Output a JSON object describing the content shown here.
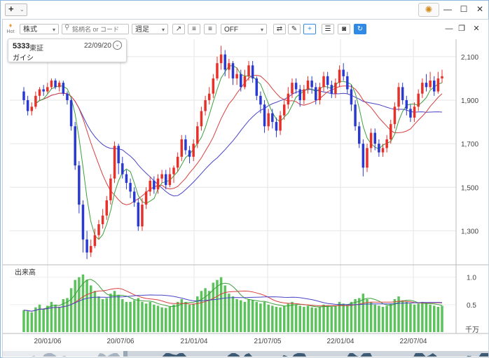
{
  "titlebar": {
    "add_label": "+",
    "add_caret": "⌄",
    "gear_icon": "gear-icon",
    "minimize": "—",
    "maximize": "☐",
    "close": "✕"
  },
  "toolbar": {
    "hot_label": "Hot",
    "market_select": "株式",
    "search_placeholder": "銘柄名 or コード",
    "period_select": "週足",
    "indicator_select": "OFF",
    "panel_minimize": "—",
    "panel_restore": "❐",
    "panel_close": "✕"
  },
  "info_card": {
    "code": "5333",
    "exchange": "東証",
    "date": "22/09/20",
    "name": "ガイシ"
  },
  "price_axis": {
    "labels": [
      "2,100",
      "1,900",
      "1,700",
      "1,500",
      "1,300"
    ]
  },
  "volume_axis": {
    "title": "出来高",
    "labels": [
      "1.0",
      "0.5"
    ],
    "unit": "千万"
  },
  "date_axis": {
    "labels": [
      "20/01/06",
      "20/07/06",
      "21/01/04",
      "21/07/05",
      "22/01/04",
      "22/07/04"
    ]
  },
  "colors": {
    "up": "#e8302a",
    "down": "#2a3ad0",
    "ma_short": "#3aa03a",
    "ma_mid": "#d84040",
    "ma_long": "#4a44c8",
    "volume": "#5cc35c"
  },
  "chart_data": {
    "type": "candlestick",
    "price_range": [
      1150,
      2180
    ],
    "volume_range": [
      0,
      1.2
    ],
    "volume_unit": "千万",
    "candles": [
      [
        1940,
        1900,
        1960,
        1880,
        0.4
      ],
      [
        1900,
        1850,
        1920,
        1830,
        0.38
      ],
      [
        1850,
        1870,
        1890,
        1830,
        0.36
      ],
      [
        1870,
        1920,
        1940,
        1860,
        0.45
      ],
      [
        1920,
        1950,
        1960,
        1900,
        0.5
      ],
      [
        1950,
        1940,
        1970,
        1920,
        0.42
      ],
      [
        1940,
        1960,
        1980,
        1930,
        0.48
      ],
      [
        1960,
        1990,
        2000,
        1950,
        0.55
      ],
      [
        1990,
        1960,
        2000,
        1950,
        0.5
      ],
      [
        1960,
        1980,
        1990,
        1940,
        0.46
      ],
      [
        1980,
        1930,
        1990,
        1920,
        0.6
      ],
      [
        1930,
        1900,
        1940,
        1880,
        0.62
      ],
      [
        1900,
        1780,
        1910,
        1760,
        0.8
      ],
      [
        1780,
        1600,
        1800,
        1580,
        0.95
      ],
      [
        1600,
        1420,
        1620,
        1380,
        1.0
      ],
      [
        1420,
        1260,
        1440,
        1200,
        1.05
      ],
      [
        1260,
        1200,
        1300,
        1170,
        0.95
      ],
      [
        1200,
        1230,
        1260,
        1180,
        0.85
      ],
      [
        1230,
        1280,
        1310,
        1220,
        0.75
      ],
      [
        1280,
        1330,
        1350,
        1260,
        0.65
      ],
      [
        1330,
        1370,
        1400,
        1310,
        0.6
      ],
      [
        1370,
        1440,
        1460,
        1350,
        0.62
      ],
      [
        1440,
        1540,
        1560,
        1420,
        0.7
      ],
      [
        1540,
        1690,
        1710,
        1520,
        0.75
      ],
      [
        1690,
        1610,
        1700,
        1560,
        0.68
      ],
      [
        1610,
        1560,
        1640,
        1540,
        0.6
      ],
      [
        1560,
        1520,
        1580,
        1490,
        0.55
      ],
      [
        1520,
        1480,
        1540,
        1450,
        0.55
      ],
      [
        1480,
        1430,
        1500,
        1410,
        0.58
      ],
      [
        1430,
        1320,
        1450,
        1300,
        0.62
      ],
      [
        1320,
        1420,
        1450,
        1300,
        0.55
      ],
      [
        1420,
        1480,
        1500,
        1400,
        0.52
      ],
      [
        1480,
        1530,
        1550,
        1460,
        0.55
      ],
      [
        1530,
        1490,
        1550,
        1470,
        0.5
      ],
      [
        1490,
        1540,
        1560,
        1470,
        0.48
      ],
      [
        1540,
        1560,
        1580,
        1520,
        0.45
      ],
      [
        1560,
        1510,
        1580,
        1490,
        0.44
      ],
      [
        1510,
        1560,
        1590,
        1500,
        0.46
      ],
      [
        1560,
        1590,
        1600,
        1520,
        0.5
      ],
      [
        1590,
        1640,
        1660,
        1570,
        0.55
      ],
      [
        1640,
        1720,
        1740,
        1620,
        0.6
      ],
      [
        1720,
        1670,
        1740,
        1650,
        0.55
      ],
      [
        1670,
        1640,
        1690,
        1610,
        0.5
      ],
      [
        1640,
        1700,
        1720,
        1620,
        0.52
      ],
      [
        1700,
        1780,
        1800,
        1680,
        0.65
      ],
      [
        1780,
        1850,
        1870,
        1760,
        0.75
      ],
      [
        1850,
        1900,
        1920,
        1830,
        0.8
      ],
      [
        1900,
        1930,
        1960,
        1880,
        0.75
      ],
      [
        1930,
        2000,
        2020,
        1910,
        0.9
      ],
      [
        2000,
        2070,
        2100,
        1990,
        0.95
      ],
      [
        2070,
        2110,
        2150,
        2040,
        1.0
      ],
      [
        2110,
        2040,
        2130,
        2010,
        0.85
      ],
      [
        2040,
        2070,
        2090,
        2000,
        0.7
      ],
      [
        2070,
        2000,
        2080,
        1970,
        0.65
      ],
      [
        2000,
        2020,
        2050,
        1970,
        0.6
      ],
      [
        2020,
        1960,
        2040,
        1940,
        0.58
      ],
      [
        1960,
        2010,
        2040,
        1950,
        0.55
      ],
      [
        2010,
        2060,
        2080,
        1990,
        0.6
      ],
      [
        2060,
        2000,
        2080,
        1980,
        0.58
      ],
      [
        2000,
        1920,
        2010,
        1900,
        0.55
      ],
      [
        1920,
        1880,
        1940,
        1840,
        0.52
      ],
      [
        1880,
        1780,
        1900,
        1750,
        0.55
      ],
      [
        1780,
        1840,
        1860,
        1760,
        0.5
      ],
      [
        1840,
        1800,
        1860,
        1770,
        0.48
      ],
      [
        1800,
        1760,
        1820,
        1730,
        0.46
      ],
      [
        1760,
        1830,
        1850,
        1740,
        0.45
      ],
      [
        1830,
        1880,
        1900,
        1810,
        0.48
      ],
      [
        1880,
        1930,
        1960,
        1860,
        0.52
      ],
      [
        1930,
        1980,
        2000,
        1910,
        0.55
      ],
      [
        1980,
        1950,
        2000,
        1930,
        0.5
      ],
      [
        1950,
        1900,
        1970,
        1870,
        0.48
      ],
      [
        1900,
        1950,
        1970,
        1880,
        0.46
      ],
      [
        1950,
        1990,
        2010,
        1930,
        0.48
      ],
      [
        1990,
        1960,
        2010,
        1930,
        0.45
      ],
      [
        1960,
        1900,
        1980,
        1880,
        0.44
      ],
      [
        1900,
        1960,
        1980,
        1880,
        0.46
      ],
      [
        1960,
        2010,
        2030,
        1940,
        0.5
      ],
      [
        2010,
        1970,
        2030,
        1950,
        0.48
      ],
      [
        1970,
        1930,
        1990,
        1910,
        0.46
      ],
      [
        1930,
        1980,
        2000,
        1910,
        0.48
      ],
      [
        1980,
        2040,
        2060,
        1960,
        0.55
      ],
      [
        2040,
        2010,
        2070,
        1990,
        0.52
      ],
      [
        2010,
        1950,
        2030,
        1930,
        0.5
      ],
      [
        1950,
        1880,
        1970,
        1850,
        0.55
      ],
      [
        1880,
        1780,
        1900,
        1760,
        0.6
      ],
      [
        1780,
        1700,
        1800,
        1680,
        0.62
      ],
      [
        1700,
        1590,
        1720,
        1550,
        0.7
      ],
      [
        1590,
        1680,
        1700,
        1570,
        0.6
      ],
      [
        1680,
        1750,
        1770,
        1660,
        0.55
      ],
      [
        1750,
        1700,
        1770,
        1670,
        0.5
      ],
      [
        1700,
        1660,
        1720,
        1640,
        0.48
      ],
      [
        1660,
        1680,
        1700,
        1640,
        0.46
      ],
      [
        1680,
        1720,
        1740,
        1660,
        0.48
      ],
      [
        1720,
        1790,
        1810,
        1700,
        0.52
      ],
      [
        1790,
        1870,
        1890,
        1770,
        0.6
      ],
      [
        1870,
        1960,
        1980,
        1850,
        0.65
      ],
      [
        1960,
        1900,
        1980,
        1880,
        0.58
      ],
      [
        1900,
        1860,
        1920,
        1830,
        0.55
      ],
      [
        1860,
        1820,
        1880,
        1800,
        0.52
      ],
      [
        1820,
        1870,
        1890,
        1800,
        0.5
      ],
      [
        1870,
        1930,
        1950,
        1850,
        0.52
      ],
      [
        1930,
        1980,
        2000,
        1910,
        0.55
      ],
      [
        1980,
        1960,
        2020,
        1940,
        0.52
      ],
      [
        1960,
        1990,
        2030,
        1950,
        0.5
      ],
      [
        1990,
        1940,
        2010,
        1920,
        0.48
      ],
      [
        1940,
        2000,
        2030,
        1930,
        0.46
      ],
      [
        2000,
        2010,
        2040,
        1980,
        0.48
      ]
    ],
    "ma_short_period": 5,
    "ma_mid_period": 13,
    "ma_long_period": 26
  }
}
